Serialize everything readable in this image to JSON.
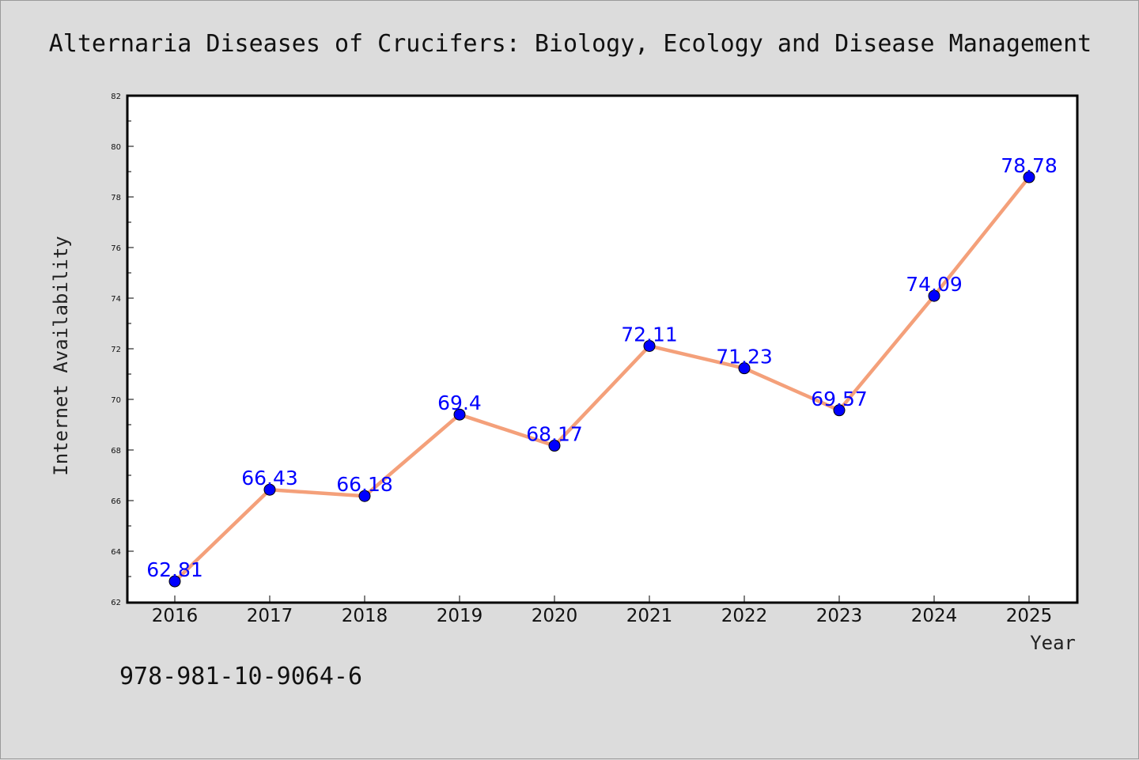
{
  "colors": {
    "background": "#dcdcdc",
    "plot_background": "#ffffff",
    "line": "#f4a07a",
    "marker": "#0000ff",
    "data_label": "#0000ff"
  },
  "footer": {
    "isbn": "978-981-10-9064-6"
  },
  "chart_data": {
    "type": "line",
    "title": "Alternaria Diseases of Crucifers: Biology, Ecology and Disease Management",
    "xlabel": "Year",
    "ylabel": "Internet Availability",
    "categories": [
      "2016",
      "2017",
      "2018",
      "2019",
      "2020",
      "2021",
      "2022",
      "2023",
      "2024",
      "2025"
    ],
    "series": [
      {
        "values": [
          62.81,
          66.43,
          66.18,
          69.4,
          68.17,
          72.11,
          71.23,
          69.57,
          74.09,
          78.78
        ],
        "labels": [
          "62.81",
          "66.43",
          "66.18",
          "69.4",
          "68.17",
          "72.11",
          "71.23",
          "69.57",
          "74.09",
          "78.78"
        ]
      }
    ],
    "ylim": [
      62,
      82
    ],
    "yticks": [
      62,
      64,
      66,
      68,
      70,
      72,
      74,
      76,
      78,
      80,
      82
    ],
    "grid": false,
    "legend": "none"
  }
}
